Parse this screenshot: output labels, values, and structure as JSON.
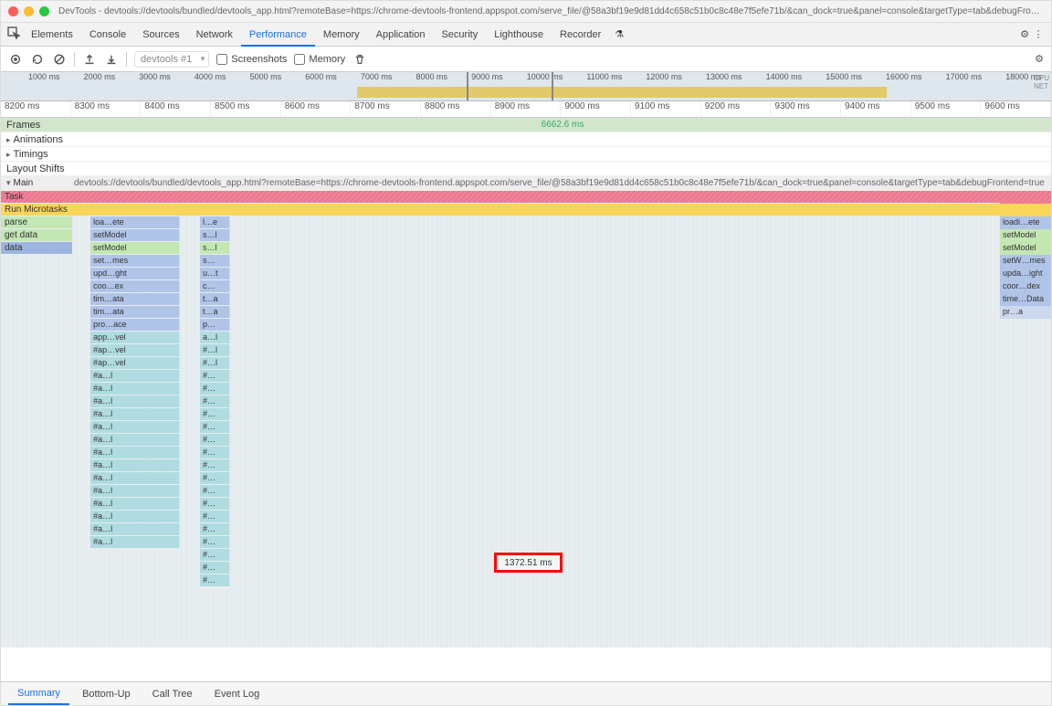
{
  "window": {
    "title": "DevTools - devtools://devtools/bundled/devtools_app.html?remoteBase=https://chrome-devtools-frontend.appspot.com/serve_file/@58a3bf19e9d81dd4c658c51b0c8c48e7f5efe71b/&can_dock=true&panel=console&targetType=tab&debugFrontend=true"
  },
  "panelTabs": [
    "Elements",
    "Console",
    "Sources",
    "Network",
    "Performance",
    "Memory",
    "Application",
    "Security",
    "Lighthouse",
    "Recorder"
  ],
  "activePanel": "Performance",
  "toolbar": {
    "recordingSelector": "devtools #1",
    "screenshotsLabel": "Screenshots",
    "memoryLabel": "Memory"
  },
  "overview": {
    "ticks": [
      "1000 ms",
      "2000 ms",
      "3000 ms",
      "4000 ms",
      "5000 ms",
      "6000 ms",
      "7000 ms",
      "8000 ms",
      "9000 ms",
      "10000 ms",
      "11000 ms",
      "12000 ms",
      "13000 ms",
      "14000 ms",
      "15000 ms",
      "16000 ms",
      "17000 ms",
      "18000 ms"
    ],
    "rightLabels": [
      "CPU",
      "NET"
    ],
    "selectionLeftPx": 510,
    "selectionWidthPx": 95,
    "cpu_color": "#e2c96a",
    "bg_color": "#dfe7ee"
  },
  "ruler": [
    "8200 ms",
    "8300 ms",
    "8400 ms",
    "8500 ms",
    "8600 ms",
    "8700 ms",
    "8800 ms",
    "8900 ms",
    "9000 ms",
    "9100 ms",
    "9200 ms",
    "9300 ms",
    "9400 ms",
    "9500 ms",
    "9600 ms"
  ],
  "tracks": {
    "frames": {
      "label": "Frames",
      "value": "6662.6 ms"
    },
    "animations": "Animations",
    "timings": "Timings",
    "layoutShifts": "Layout Shifts",
    "main": {
      "label": "Main",
      "url": "devtools://devtools/bundled/devtools_app.html?remoteBase=https://chrome-devtools-frontend.appspot.com/serve_file/@58a3bf19e9d81dd4c658c51b0c8c48e7f5efe71b/&can_dock=true&panel=console&targetType=tab&debugFrontend=true"
    }
  },
  "flame": {
    "colors": {
      "task": "#f4829a",
      "microtask": "#f9d65a",
      "script_green": "#c3e7b3",
      "js_blue": "#b0c4e8",
      "js_blue2": "#9db6e0",
      "teal": "#b0dbe0",
      "pale": "#cbd8ee"
    },
    "leftCol": [
      "Task",
      "Run Microtasks",
      "parse",
      "get data",
      "data"
    ],
    "lanes": [
      {
        "y": 0,
        "cells": [
          {
            "l": 0,
            "w": 100,
            "cls": "task",
            "t": ""
          }
        ],
        "r": {
          "cls": "task",
          "t": ""
        }
      },
      {
        "y": 1,
        "cells": [
          {
            "l": 0,
            "w": 100,
            "cls": "runmt",
            "t": ""
          }
        ],
        "r": {
          "cls": "runmt",
          "t": ""
        }
      },
      {
        "y": 2,
        "cells": [
          {
            "l": 0,
            "w": 7,
            "cls": "green",
            "t": "parse"
          },
          {
            "l": 9,
            "w": 9,
            "cls": "blue",
            "t": "loa…ete"
          },
          {
            "l": 20,
            "w": 3,
            "cls": "blue",
            "t": "l…e"
          }
        ],
        "r": {
          "cls": "blue",
          "t": "loadi…ete"
        }
      },
      {
        "y": 3,
        "cells": [
          {
            "l": 0,
            "w": 7,
            "cls": "green",
            "t": "get data"
          },
          {
            "l": 9,
            "w": 9,
            "cls": "blue",
            "t": "setModel"
          },
          {
            "l": 20,
            "w": 3,
            "cls": "blue",
            "t": "s…l"
          }
        ],
        "r": {
          "cls": "green",
          "t": "setModel"
        }
      },
      {
        "y": 4,
        "cells": [
          {
            "l": 0,
            "w": 7,
            "cls": "blue2",
            "t": "data"
          },
          {
            "l": 9,
            "w": 9,
            "cls": "green",
            "t": "setModel"
          },
          {
            "l": 20,
            "w": 3,
            "cls": "green",
            "t": "s…l"
          }
        ],
        "r": {
          "cls": "green",
          "t": "setModel"
        }
      },
      {
        "y": 5,
        "cells": [
          {
            "l": 9,
            "w": 9,
            "cls": "blue",
            "t": "set…mes"
          },
          {
            "l": 20,
            "w": 3,
            "cls": "blue",
            "t": "s…"
          }
        ],
        "r": {
          "cls": "blue",
          "t": "setW…mes"
        }
      },
      {
        "y": 6,
        "cells": [
          {
            "l": 9,
            "w": 9,
            "cls": "blue",
            "t": "upd…ght"
          },
          {
            "l": 20,
            "w": 3,
            "cls": "blue",
            "t": "u…t"
          }
        ],
        "r": {
          "cls": "blue",
          "t": "upda…ight"
        }
      },
      {
        "y": 7,
        "cells": [
          {
            "l": 9,
            "w": 9,
            "cls": "blue",
            "t": "coo…ex"
          },
          {
            "l": 20,
            "w": 3,
            "cls": "blue",
            "t": "c…"
          }
        ],
        "r": {
          "cls": "blue",
          "t": "coor…dex"
        }
      },
      {
        "y": 8,
        "cells": [
          {
            "l": 9,
            "w": 9,
            "cls": "blue",
            "t": "tim…ata"
          },
          {
            "l": 20,
            "w": 3,
            "cls": "blue",
            "t": "t…a"
          }
        ],
        "r": {
          "cls": "blue",
          "t": "time…Data"
        }
      },
      {
        "y": 9,
        "cells": [
          {
            "l": 9,
            "w": 9,
            "cls": "blue",
            "t": "tim…ata"
          },
          {
            "l": 20,
            "w": 3,
            "cls": "blue",
            "t": "t…a"
          }
        ],
        "r": {
          "cls": "pale",
          "t": "pr…a"
        }
      },
      {
        "y": 10,
        "cells": [
          {
            "l": 9,
            "w": 9,
            "cls": "blue",
            "t": "pro…ace"
          },
          {
            "l": 20,
            "w": 3,
            "cls": "blue",
            "t": "p…"
          }
        ]
      },
      {
        "y": 11,
        "cells": [
          {
            "l": 9,
            "w": 9,
            "cls": "teal",
            "t": "app…vel"
          },
          {
            "l": 20,
            "w": 3,
            "cls": "teal",
            "t": "a…l"
          }
        ]
      },
      {
        "y": 12,
        "cells": [
          {
            "l": 9,
            "w": 9,
            "cls": "teal",
            "t": "#ap…vel"
          },
          {
            "l": 20,
            "w": 3,
            "cls": "teal",
            "t": "#…l"
          }
        ]
      },
      {
        "y": 13,
        "cells": [
          {
            "l": 9,
            "w": 9,
            "cls": "teal",
            "t": "#ap…vel"
          },
          {
            "l": 20,
            "w": 3,
            "cls": "teal",
            "t": "#…l"
          }
        ]
      },
      {
        "y": 14,
        "cells": [
          {
            "l": 9,
            "w": 9,
            "cls": "teal",
            "t": "#a…l"
          },
          {
            "l": 20,
            "w": 3,
            "cls": "teal",
            "t": "#…"
          }
        ]
      },
      {
        "y": 15,
        "cells": [
          {
            "l": 9,
            "w": 9,
            "cls": "teal",
            "t": "#a…l"
          },
          {
            "l": 20,
            "w": 3,
            "cls": "teal",
            "t": "#…"
          }
        ]
      },
      {
        "y": 16,
        "cells": [
          {
            "l": 9,
            "w": 9,
            "cls": "teal",
            "t": "#a…l"
          },
          {
            "l": 20,
            "w": 3,
            "cls": "teal",
            "t": "#…"
          }
        ]
      },
      {
        "y": 17,
        "cells": [
          {
            "l": 9,
            "w": 9,
            "cls": "teal",
            "t": "#a…l"
          },
          {
            "l": 20,
            "w": 3,
            "cls": "teal",
            "t": "#…"
          }
        ]
      },
      {
        "y": 18,
        "cells": [
          {
            "l": 9,
            "w": 9,
            "cls": "teal",
            "t": "#a…l"
          },
          {
            "l": 20,
            "w": 3,
            "cls": "teal",
            "t": "#…"
          }
        ]
      },
      {
        "y": 19,
        "cells": [
          {
            "l": 9,
            "w": 9,
            "cls": "teal",
            "t": "#a…l"
          },
          {
            "l": 20,
            "w": 3,
            "cls": "teal",
            "t": "#…"
          }
        ]
      },
      {
        "y": 20,
        "cells": [
          {
            "l": 9,
            "w": 9,
            "cls": "teal",
            "t": "#a…l"
          },
          {
            "l": 20,
            "w": 3,
            "cls": "teal",
            "t": "#…"
          }
        ]
      },
      {
        "y": 21,
        "cells": [
          {
            "l": 9,
            "w": 9,
            "cls": "teal",
            "t": "#a…l"
          },
          {
            "l": 20,
            "w": 3,
            "cls": "teal",
            "t": "#…"
          }
        ]
      },
      {
        "y": 22,
        "cells": [
          {
            "l": 9,
            "w": 9,
            "cls": "teal",
            "t": "#a…l"
          },
          {
            "l": 20,
            "w": 3,
            "cls": "teal",
            "t": "#…"
          }
        ]
      },
      {
        "y": 23,
        "cells": [
          {
            "l": 9,
            "w": 9,
            "cls": "teal",
            "t": "#a…l"
          },
          {
            "l": 20,
            "w": 3,
            "cls": "teal",
            "t": "#…"
          }
        ]
      },
      {
        "y": 24,
        "cells": [
          {
            "l": 9,
            "w": 9,
            "cls": "teal",
            "t": "#a…l"
          },
          {
            "l": 20,
            "w": 3,
            "cls": "teal",
            "t": "#…"
          }
        ]
      },
      {
        "y": 25,
        "cells": [
          {
            "l": 9,
            "w": 9,
            "cls": "teal",
            "t": "#a…l"
          },
          {
            "l": 20,
            "w": 3,
            "cls": "teal",
            "t": "#…"
          }
        ]
      },
      {
        "y": 26,
        "cells": [
          {
            "l": 9,
            "w": 9,
            "cls": "teal",
            "t": "#a…l"
          },
          {
            "l": 20,
            "w": 3,
            "cls": "teal",
            "t": "#…"
          }
        ]
      },
      {
        "y": 27,
        "cells": [
          {
            "l": 9,
            "w": 9,
            "cls": "teal",
            "t": "#a…l"
          },
          {
            "l": 20,
            "w": 3,
            "cls": "teal",
            "t": "#…"
          }
        ]
      },
      {
        "y": 28,
        "cells": [
          {
            "l": 20,
            "w": 3,
            "cls": "teal",
            "t": "#…"
          }
        ]
      },
      {
        "y": 29,
        "cells": [
          {
            "l": 20,
            "w": 3,
            "cls": "teal",
            "t": "#…"
          }
        ]
      },
      {
        "y": 30,
        "cells": [
          {
            "l": 20,
            "w": 3,
            "cls": "teal",
            "t": "#…"
          }
        ]
      }
    ],
    "highlight": "1372.51 ms"
  },
  "bottomTabs": [
    "Summary",
    "Bottom-Up",
    "Call Tree",
    "Event Log"
  ],
  "activeBottomTab": "Summary"
}
